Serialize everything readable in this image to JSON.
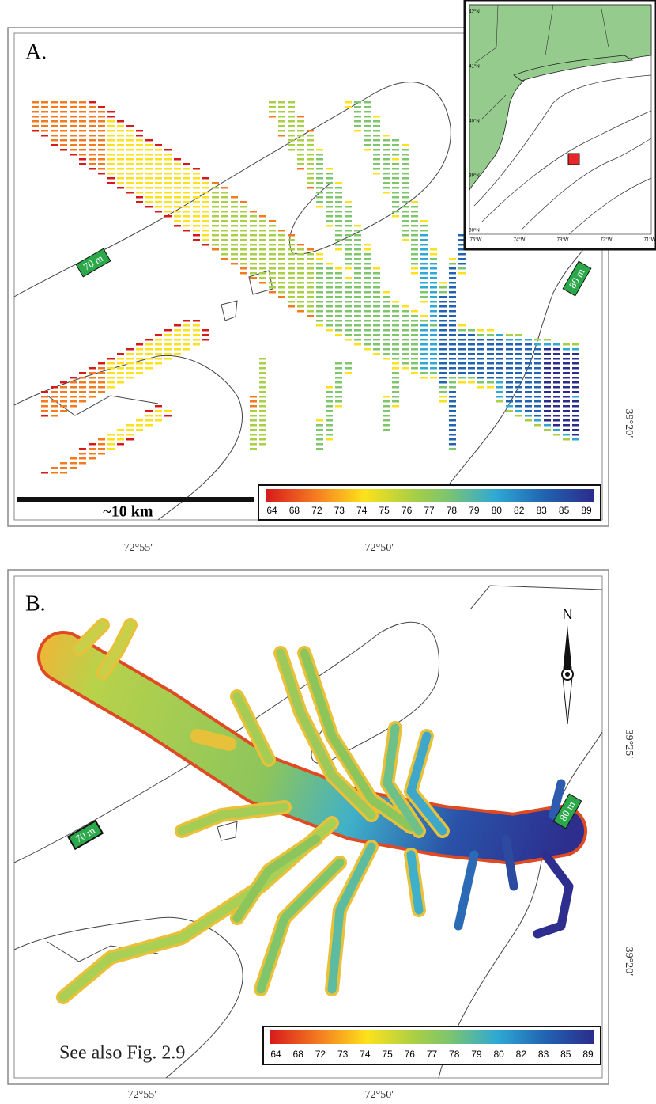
{
  "panels": [
    {
      "label": "A.",
      "contours": [
        "70 m",
        "80 m"
      ],
      "scale_bar": "~10 km",
      "colorbar": [
        64,
        68,
        72,
        73,
        74,
        75,
        76,
        77,
        78,
        79,
        80,
        82,
        83,
        85,
        89
      ],
      "lon_labels": [
        "72°55′",
        "72°50′"
      ],
      "lat_labels": [
        "39°20′"
      ]
    },
    {
      "label": "B.",
      "north": "N",
      "contours": [
        "70 m",
        "80 m"
      ],
      "colorbar": [
        64,
        68,
        72,
        73,
        74,
        75,
        76,
        77,
        78,
        79,
        80,
        82,
        83,
        85,
        89
      ],
      "lon_labels": [
        "72°55′",
        "72°50′"
      ],
      "lat_labels": [
        "39°25′",
        "39°20′"
      ],
      "note": "See also Fig. 2.9"
    }
  ],
  "inset": {
    "lat_labels": [
      "42°N",
      "41°N",
      "40°N",
      "39°N",
      "38°N"
    ],
    "lon_labels": [
      "75°W",
      "74°W",
      "73°W",
      "72°W",
      "71°W"
    ]
  }
}
